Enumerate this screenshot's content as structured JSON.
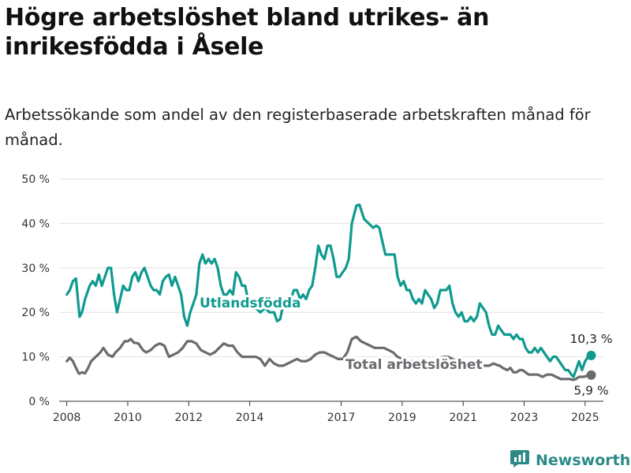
{
  "title": "Högre arbetslöshet bland utrikes- än inrikesfödda i Åsele",
  "subtitle": "Arbetssökande som andel av den registerbaserade arbetskraften månad för månad.",
  "brand": {
    "name": "Newsworthy",
    "icon": "newsworthy-logo-icon",
    "color": "#2b8a85"
  },
  "chart_data": {
    "type": "line",
    "title": "Högre arbetslöshet bland utrikes- än inrikesfödda i Åsele",
    "subtitle": "Arbetssökande som andel av den registerbaserade arbetskraften månad för månad.",
    "xlabel": "",
    "ylabel": "",
    "xlim": [
      2007.75,
      2025.6
    ],
    "ylim": [
      0,
      50
    ],
    "x_ticks": [
      2008,
      2010,
      2012,
      2014,
      2017,
      2019,
      2021,
      2023,
      2025
    ],
    "y_ticks": [
      {
        "value": 0,
        "label": "0 %"
      },
      {
        "value": 10,
        "label": "10 %"
      },
      {
        "value": 20,
        "label": "20 %"
      },
      {
        "value": 30,
        "label": "30 %"
      },
      {
        "value": 40,
        "label": "40 %"
      },
      {
        "value": 50,
        "label": "50 %"
      }
    ],
    "grid": "horizontal",
    "series": [
      {
        "name": "Utlandsfödda",
        "color": "#0f9a8f",
        "end_label": "10,3 %",
        "points": [
          [
            2008.0,
            24.0
          ],
          [
            2008.1,
            25.0
          ],
          [
            2008.2,
            27.0
          ],
          [
            2008.3,
            27.6
          ],
          [
            2008.35,
            24.0
          ],
          [
            2008.42,
            19.0
          ],
          [
            2008.5,
            20.0
          ],
          [
            2008.6,
            23.0
          ],
          [
            2008.75,
            26.0
          ],
          [
            2008.85,
            27.0
          ],
          [
            2008.95,
            26.0
          ],
          [
            2009.05,
            28.5
          ],
          [
            2009.15,
            26.0
          ],
          [
            2009.25,
            28.0
          ],
          [
            2009.35,
            30.0
          ],
          [
            2009.45,
            30.0
          ],
          [
            2009.55,
            24.0
          ],
          [
            2009.65,
            20.0
          ],
          [
            2009.75,
            23.0
          ],
          [
            2009.85,
            26.0
          ],
          [
            2009.95,
            25.0
          ],
          [
            2010.05,
            25.0
          ],
          [
            2010.15,
            28.0
          ],
          [
            2010.25,
            29.0
          ],
          [
            2010.35,
            27.0
          ],
          [
            2010.45,
            29.0
          ],
          [
            2010.55,
            30.0
          ],
          [
            2010.65,
            28.0
          ],
          [
            2010.75,
            26.0
          ],
          [
            2010.85,
            25.0
          ],
          [
            2010.95,
            25.0
          ],
          [
            2011.05,
            24.0
          ],
          [
            2011.15,
            27.0
          ],
          [
            2011.25,
            28.0
          ],
          [
            2011.35,
            28.5
          ],
          [
            2011.45,
            26.0
          ],
          [
            2011.55,
            28.0
          ],
          [
            2011.65,
            26.0
          ],
          [
            2011.75,
            24.0
          ],
          [
            2011.85,
            19.0
          ],
          [
            2011.95,
            17.0
          ],
          [
            2012.05,
            20.0
          ],
          [
            2012.15,
            22.0
          ],
          [
            2012.25,
            24.0
          ],
          [
            2012.35,
            31.0
          ],
          [
            2012.45,
            33.0
          ],
          [
            2012.55,
            31.0
          ],
          [
            2012.65,
            32.0
          ],
          [
            2012.75,
            31.0
          ],
          [
            2012.85,
            32.0
          ],
          [
            2012.95,
            30.0
          ],
          [
            2013.05,
            26.0
          ],
          [
            2013.15,
            24.0
          ],
          [
            2013.25,
            24.0
          ],
          [
            2013.35,
            25.0
          ],
          [
            2013.45,
            24.0
          ],
          [
            2013.55,
            29.0
          ],
          [
            2013.65,
            28.0
          ],
          [
            2013.75,
            26.0
          ],
          [
            2013.85,
            26.0
          ],
          [
            2014.0,
            21.0
          ],
          [
            2014.2,
            21.0
          ],
          [
            2014.35,
            20.0
          ],
          [
            2014.5,
            21.0
          ],
          [
            2014.65,
            20.0
          ],
          [
            2014.8,
            20.0
          ],
          [
            2014.9,
            18.0
          ],
          [
            2015.0,
            18.5
          ],
          [
            2015.1,
            22.0
          ],
          [
            2015.2,
            23.0
          ],
          [
            2015.3,
            22.0
          ],
          [
            2015.45,
            25.0
          ],
          [
            2015.55,
            25.0
          ],
          [
            2015.65,
            23.0
          ],
          [
            2015.75,
            24.0
          ],
          [
            2015.85,
            23.0
          ],
          [
            2015.95,
            25.0
          ],
          [
            2016.05,
            26.0
          ],
          [
            2016.15,
            30.0
          ],
          [
            2016.25,
            35.0
          ],
          [
            2016.35,
            33.0
          ],
          [
            2016.45,
            32.0
          ],
          [
            2016.55,
            35.0
          ],
          [
            2016.65,
            35.0
          ],
          [
            2016.75,
            32.0
          ],
          [
            2016.85,
            28.0
          ],
          [
            2016.95,
            28.0
          ],
          [
            2017.05,
            29.0
          ],
          [
            2017.15,
            30.0
          ],
          [
            2017.25,
            32.0
          ],
          [
            2017.35,
            40.0
          ],
          [
            2017.5,
            44.0
          ],
          [
            2017.6,
            44.2
          ],
          [
            2017.75,
            41.0
          ],
          [
            2017.9,
            40.0
          ],
          [
            2018.05,
            39.0
          ],
          [
            2018.15,
            39.5
          ],
          [
            2018.25,
            39.0
          ],
          [
            2018.35,
            36.0
          ],
          [
            2018.45,
            33.0
          ],
          [
            2018.6,
            33.0
          ],
          [
            2018.75,
            33.0
          ],
          [
            2018.85,
            28.0
          ],
          [
            2018.95,
            26.0
          ],
          [
            2019.05,
            27.0
          ],
          [
            2019.15,
            25.0
          ],
          [
            2019.25,
            25.0
          ],
          [
            2019.35,
            23.0
          ],
          [
            2019.45,
            22.0
          ],
          [
            2019.55,
            23.0
          ],
          [
            2019.65,
            22.0
          ],
          [
            2019.75,
            25.0
          ],
          [
            2019.85,
            24.0
          ],
          [
            2019.95,
            23.0
          ],
          [
            2020.05,
            21.0
          ],
          [
            2020.15,
            22.0
          ],
          [
            2020.25,
            25.0
          ],
          [
            2020.35,
            25.0
          ],
          [
            2020.45,
            25.0
          ],
          [
            2020.55,
            26.0
          ],
          [
            2020.65,
            22.0
          ],
          [
            2020.75,
            20.0
          ],
          [
            2020.85,
            19.0
          ],
          [
            2020.95,
            20.0
          ],
          [
            2021.05,
            18.0
          ],
          [
            2021.15,
            18.0
          ],
          [
            2021.25,
            19.0
          ],
          [
            2021.35,
            18.0
          ],
          [
            2021.45,
            19.0
          ],
          [
            2021.55,
            22.0
          ],
          [
            2021.65,
            21.0
          ],
          [
            2021.75,
            20.0
          ],
          [
            2021.85,
            17.0
          ],
          [
            2021.95,
            15.0
          ],
          [
            2022.05,
            15.0
          ],
          [
            2022.15,
            17.0
          ],
          [
            2022.25,
            16.0
          ],
          [
            2022.35,
            15.0
          ],
          [
            2022.45,
            15.0
          ],
          [
            2022.55,
            15.0
          ],
          [
            2022.65,
            14.0
          ],
          [
            2022.75,
            15.0
          ],
          [
            2022.85,
            14.0
          ],
          [
            2022.95,
            14.0
          ],
          [
            2023.05,
            12.0
          ],
          [
            2023.15,
            11.0
          ],
          [
            2023.25,
            11.0
          ],
          [
            2023.35,
            12.0
          ],
          [
            2023.45,
            11.0
          ],
          [
            2023.55,
            12.0
          ],
          [
            2023.65,
            11.0
          ],
          [
            2023.75,
            10.0
          ],
          [
            2023.85,
            9.0
          ],
          [
            2023.95,
            10.0
          ],
          [
            2024.05,
            10.0
          ],
          [
            2024.15,
            9.0
          ],
          [
            2024.25,
            8.0
          ],
          [
            2024.35,
            7.0
          ],
          [
            2024.45,
            7.0
          ],
          [
            2024.55,
            6.0
          ],
          [
            2024.62,
            5.5
          ],
          [
            2024.7,
            7.0
          ],
          [
            2024.8,
            9.0
          ],
          [
            2024.9,
            7.0
          ],
          [
            2025.0,
            9.0
          ],
          [
            2025.1,
            10.0
          ],
          [
            2025.2,
            10.3
          ]
        ]
      },
      {
        "name": "Total arbetslöshet",
        "color": "#6b6a6f",
        "end_label": "5,9 %",
        "points": [
          [
            2008.0,
            9.0
          ],
          [
            2008.1,
            9.8
          ],
          [
            2008.2,
            9.0
          ],
          [
            2008.3,
            7.5
          ],
          [
            2008.4,
            6.2
          ],
          [
            2008.5,
            6.5
          ],
          [
            2008.6,
            6.3
          ],
          [
            2008.7,
            7.5
          ],
          [
            2008.8,
            9.0
          ],
          [
            2008.95,
            10.0
          ],
          [
            2009.1,
            11.0
          ],
          [
            2009.2,
            12.0
          ],
          [
            2009.35,
            10.5
          ],
          [
            2009.5,
            10.0
          ],
          [
            2009.6,
            11.0
          ],
          [
            2009.75,
            12.0
          ],
          [
            2009.9,
            13.5
          ],
          [
            2010.0,
            13.5
          ],
          [
            2010.1,
            14.0
          ],
          [
            2010.2,
            13.2
          ],
          [
            2010.35,
            13.0
          ],
          [
            2010.5,
            11.5
          ],
          [
            2010.6,
            11.0
          ],
          [
            2010.75,
            11.5
          ],
          [
            2010.9,
            12.5
          ],
          [
            2011.05,
            13.0
          ],
          [
            2011.2,
            12.5
          ],
          [
            2011.35,
            10.0
          ],
          [
            2011.5,
            10.5
          ],
          [
            2011.65,
            11.0
          ],
          [
            2011.8,
            12.0
          ],
          [
            2011.95,
            13.5
          ],
          [
            2012.1,
            13.5
          ],
          [
            2012.25,
            13.0
          ],
          [
            2012.4,
            11.5
          ],
          [
            2012.55,
            11.0
          ],
          [
            2012.7,
            10.5
          ],
          [
            2012.85,
            11.0
          ],
          [
            2013.0,
            12.0
          ],
          [
            2013.15,
            13.0
          ],
          [
            2013.3,
            12.5
          ],
          [
            2013.45,
            12.5
          ],
          [
            2013.6,
            11.0
          ],
          [
            2013.75,
            10.0
          ],
          [
            2013.9,
            10.0
          ],
          [
            2014.05,
            10.0
          ],
          [
            2014.2,
            10.0
          ],
          [
            2014.35,
            9.5
          ],
          [
            2014.5,
            8.0
          ],
          [
            2014.65,
            9.5
          ],
          [
            2014.8,
            8.5
          ],
          [
            2014.95,
            8.0
          ],
          [
            2015.1,
            8.0
          ],
          [
            2015.25,
            8.5
          ],
          [
            2015.4,
            9.0
          ],
          [
            2015.55,
            9.5
          ],
          [
            2015.7,
            9.0
          ],
          [
            2015.85,
            9.0
          ],
          [
            2016.0,
            9.5
          ],
          [
            2016.15,
            10.5
          ],
          [
            2016.3,
            11.0
          ],
          [
            2016.45,
            11.0
          ],
          [
            2016.6,
            10.5
          ],
          [
            2016.75,
            10.0
          ],
          [
            2016.9,
            9.5
          ],
          [
            2017.05,
            9.5
          ],
          [
            2017.2,
            11.0
          ],
          [
            2017.35,
            14.0
          ],
          [
            2017.5,
            14.5
          ],
          [
            2017.65,
            13.5
          ],
          [
            2017.8,
            13.0
          ],
          [
            2017.95,
            12.5
          ],
          [
            2018.1,
            12.0
          ],
          [
            2018.25,
            12.0
          ],
          [
            2018.4,
            12.0
          ],
          [
            2018.55,
            11.5
          ],
          [
            2018.7,
            11.0
          ],
          [
            2018.85,
            10.0
          ],
          [
            2019.0,
            9.5
          ],
          [
            2019.15,
            9.0
          ],
          [
            2019.3,
            9.0
          ],
          [
            2019.45,
            9.0
          ],
          [
            2019.6,
            9.0
          ],
          [
            2019.75,
            9.0
          ],
          [
            2019.9,
            9.0
          ],
          [
            2020.05,
            9.0
          ],
          [
            2020.2,
            9.5
          ],
          [
            2020.35,
            10.0
          ],
          [
            2020.5,
            10.0
          ],
          [
            2020.65,
            9.5
          ],
          [
            2020.8,
            9.0
          ],
          [
            2020.95,
            9.0
          ],
          [
            2021.1,
            8.5
          ],
          [
            2021.25,
            8.5
          ],
          [
            2021.4,
            8.5
          ],
          [
            2021.55,
            8.5
          ],
          [
            2021.7,
            8.0
          ],
          [
            2021.85,
            8.0
          ],
          [
            2022.0,
            8.5
          ],
          [
            2022.1,
            8.2
          ],
          [
            2022.2,
            8.0
          ],
          [
            2022.3,
            7.5
          ],
          [
            2022.45,
            7.0
          ],
          [
            2022.55,
            7.5
          ],
          [
            2022.65,
            6.5
          ],
          [
            2022.75,
            6.5
          ],
          [
            2022.85,
            7.0
          ],
          [
            2022.95,
            7.0
          ],
          [
            2023.05,
            6.5
          ],
          [
            2023.15,
            6.0
          ],
          [
            2023.3,
            6.0
          ],
          [
            2023.45,
            6.0
          ],
          [
            2023.6,
            5.5
          ],
          [
            2023.75,
            6.0
          ],
          [
            2023.9,
            6.0
          ],
          [
            2024.05,
            5.5
          ],
          [
            2024.2,
            5.0
          ],
          [
            2024.35,
            5.0
          ],
          [
            2024.5,
            5.0
          ],
          [
            2024.6,
            4.8
          ],
          [
            2024.7,
            5.0
          ],
          [
            2024.8,
            5.5
          ],
          [
            2024.95,
            5.5
          ],
          [
            2025.1,
            5.8
          ],
          [
            2025.2,
            5.9
          ]
        ]
      }
    ]
  }
}
